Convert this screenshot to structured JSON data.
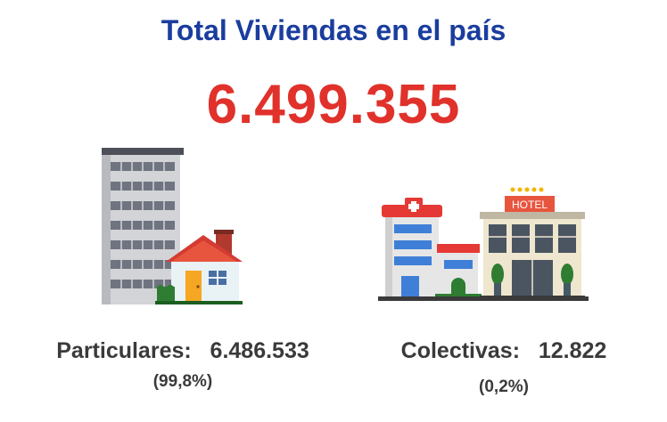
{
  "title": "Total Viviendas en el país",
  "total": "6.499.355",
  "particulares": {
    "label": "Particulares:",
    "value": "6.486.533",
    "percent": "(99,8%)",
    "icons": [
      "apartment-building-icon",
      "house-icon"
    ]
  },
  "colectivas": {
    "label": "Colectivas:",
    "value": "12.822",
    "percent": "(0,2%)",
    "icons": [
      "hospital-icon",
      "hotel-icon"
    ],
    "hotel_sign": "HOTEL"
  },
  "colors": {
    "title": "#1a3d9e",
    "total": "#e0312b",
    "text": "#3a3a3a"
  }
}
